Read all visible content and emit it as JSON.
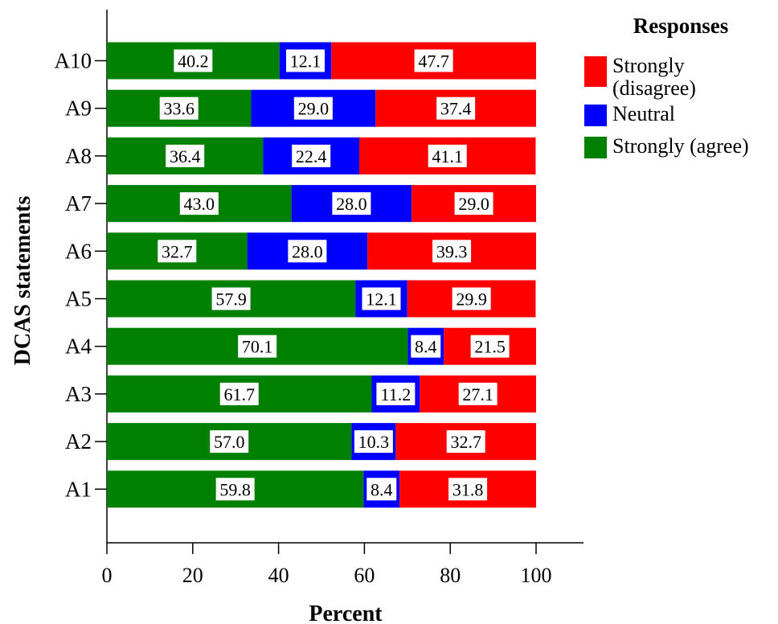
{
  "chart_data": {
    "type": "bar",
    "orientation": "horizontal",
    "stacked": true,
    "xlabel": "Percent",
    "ylabel": "DCAS statements",
    "xlim": [
      0,
      100
    ],
    "xticks": [
      0,
      20,
      40,
      60,
      80,
      100
    ],
    "grid": false,
    "legend_title": "Responses",
    "legend_position": "top-right",
    "categories": [
      "A10",
      "A9",
      "A8",
      "A7",
      "A6",
      "A5",
      "A4",
      "A3",
      "A2",
      "A1"
    ],
    "series": [
      {
        "name": "Strongly (agree)",
        "color": "#008000",
        "values": [
          40.2,
          33.6,
          36.4,
          43.0,
          32.7,
          57.9,
          70.1,
          61.7,
          57.0,
          59.8
        ],
        "labels": [
          "40.2",
          "33.6",
          "36.4",
          "43.0",
          "32.7",
          "57.9",
          "70.1",
          "61.7",
          "57.0",
          "59.8"
        ]
      },
      {
        "name": "Neutral",
        "color": "#0000ff",
        "values": [
          12.1,
          29.0,
          22.4,
          28.0,
          28.0,
          12.1,
          8.4,
          11.2,
          10.3,
          8.4
        ],
        "labels": [
          "12.1",
          "29.0",
          "22.4",
          "28.0",
          "28.0",
          "12.1",
          "8.4",
          "11.2",
          "10.3",
          "8.4"
        ]
      },
      {
        "name": "Strongly (disagree)",
        "color": "#ff0000",
        "values": [
          47.7,
          37.4,
          41.1,
          29.0,
          39.3,
          29.9,
          21.5,
          27.1,
          32.7,
          31.8
        ],
        "labels": [
          "47.7",
          "37.4",
          "41.1",
          "29.0",
          "39.3",
          "29.9",
          "21.5",
          "27.1",
          "32.7",
          "31.8"
        ]
      }
    ],
    "legend": [
      {
        "lines": [
          "Strongly",
          "(disagree)"
        ],
        "color": "#ff0000"
      },
      {
        "lines": [
          "Neutral"
        ],
        "color": "#0000ff"
      },
      {
        "lines": [
          "Strongly (agree)"
        ],
        "color": "#008000"
      }
    ]
  }
}
